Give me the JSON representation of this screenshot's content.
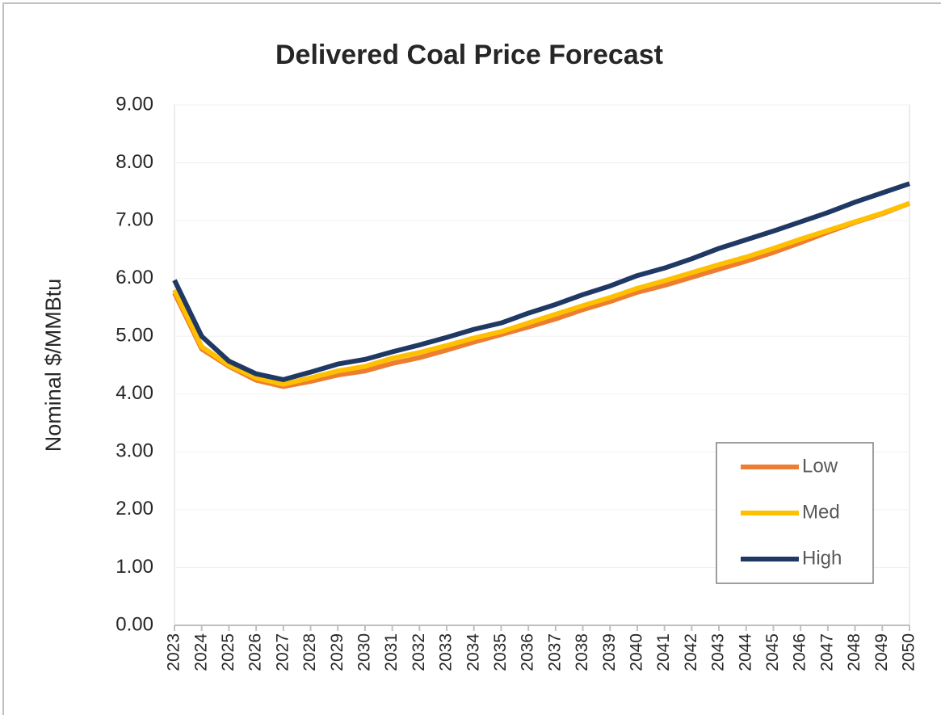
{
  "chart_data": {
    "type": "line",
    "title": "Delivered Coal Price Forecast",
    "y_label": "Nominal $/MMBtu",
    "categories": [
      "2023",
      "2024",
      "2025",
      "2026",
      "2027",
      "2028",
      "2029",
      "2030",
      "2031",
      "2032",
      "2033",
      "2034",
      "2035",
      "2036",
      "2037",
      "2038",
      "2039",
      "2040",
      "2041",
      "2042",
      "2043",
      "2044",
      "2045",
      "2046",
      "2047",
      "2048",
      "2049",
      "2050"
    ],
    "series": [
      {
        "name": "Low",
        "color": "#ED7D31",
        "values": [
          5.75,
          4.78,
          4.48,
          4.24,
          4.13,
          4.22,
          4.33,
          4.4,
          4.53,
          4.63,
          4.76,
          4.9,
          5.03,
          5.16,
          5.3,
          5.46,
          5.6,
          5.76,
          5.88,
          6.02,
          6.16,
          6.3,
          6.45,
          6.62,
          6.8,
          6.97,
          7.12,
          7.3
        ]
      },
      {
        "name": "Med",
        "color": "#FFC000",
        "values": [
          5.8,
          4.82,
          4.5,
          4.28,
          4.17,
          4.28,
          4.4,
          4.48,
          4.62,
          4.72,
          4.84,
          4.97,
          5.08,
          5.23,
          5.38,
          5.53,
          5.67,
          5.83,
          5.96,
          6.1,
          6.24,
          6.37,
          6.52,
          6.68,
          6.83,
          6.98,
          7.13,
          7.3
        ]
      },
      {
        "name": "High",
        "color": "#203864",
        "values": [
          5.97,
          5.0,
          4.57,
          4.35,
          4.25,
          4.38,
          4.52,
          4.6,
          4.73,
          4.85,
          4.98,
          5.12,
          5.23,
          5.4,
          5.55,
          5.72,
          5.87,
          6.05,
          6.18,
          6.34,
          6.52,
          6.67,
          6.82,
          6.98,
          7.14,
          7.32,
          7.48,
          7.64
        ]
      }
    ],
    "ylim": [
      0,
      9
    ],
    "yticks": [
      {
        "value": 0,
        "label": "0.00"
      },
      {
        "value": 1,
        "label": "1.00"
      },
      {
        "value": 2,
        "label": "2.00"
      },
      {
        "value": 3,
        "label": "3.00"
      },
      {
        "value": 4,
        "label": "4.00"
      },
      {
        "value": 5,
        "label": "5.00"
      },
      {
        "value": 6,
        "label": "6.00"
      },
      {
        "value": 7,
        "label": "7.00"
      },
      {
        "value": 8,
        "label": "8.00"
      },
      {
        "value": 9,
        "label": "9.00"
      }
    ],
    "grid": true,
    "legend": "lower right"
  }
}
